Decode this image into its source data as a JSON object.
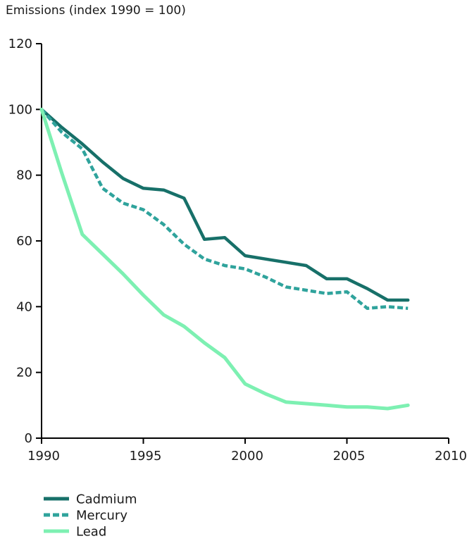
{
  "title": "Emissions (index 1990 = 100)",
  "colors": {
    "cadmium": "#177069",
    "mercury": "#2FA39C",
    "lead": "#7DF0B2",
    "axis": "#000000",
    "text": "#1a1a1a"
  },
  "chart_data": {
    "type": "line",
    "title": "Emissions (index 1990 = 100)",
    "xlabel": "",
    "ylabel": "Emissions (index 1990 = 100)",
    "xlim": [
      1990,
      2010
    ],
    "ylim": [
      0,
      120
    ],
    "x_ticks": [
      1990,
      1995,
      2000,
      2005,
      2010
    ],
    "y_ticks": [
      0,
      20,
      40,
      60,
      80,
      100,
      120
    ],
    "grid": false,
    "legend_position": "bottom-left",
    "x": [
      1990,
      1991,
      1992,
      1993,
      1994,
      1995,
      1996,
      1997,
      1998,
      1999,
      2000,
      2001,
      2002,
      2003,
      2004,
      2005,
      2006,
      2007,
      2008
    ],
    "series": [
      {
        "name": "Cadmium",
        "style": "solid",
        "color_key": "cadmium",
        "values": [
          100,
          94.5,
          89.5,
          84,
          79,
          76,
          75.5,
          73,
          60.5,
          61,
          55.5,
          54.5,
          53.5,
          52.5,
          48.5,
          48.5,
          45.5,
          42,
          42
        ]
      },
      {
        "name": "Mercury",
        "style": "dashed",
        "color_key": "mercury",
        "values": [
          100,
          93,
          88,
          76,
          71.5,
          69.5,
          65,
          59,
          54.5,
          52.5,
          51.5,
          49,
          46,
          45,
          44,
          44.5,
          39.5,
          40,
          39.5
        ]
      },
      {
        "name": "Lead",
        "style": "solid",
        "color_key": "lead",
        "values": [
          100,
          80.5,
          62,
          56,
          50,
          43.5,
          37.5,
          34,
          29,
          24.5,
          16.5,
          13.5,
          11,
          10.5,
          10,
          9.5,
          9.5,
          9,
          10
        ]
      }
    ]
  }
}
